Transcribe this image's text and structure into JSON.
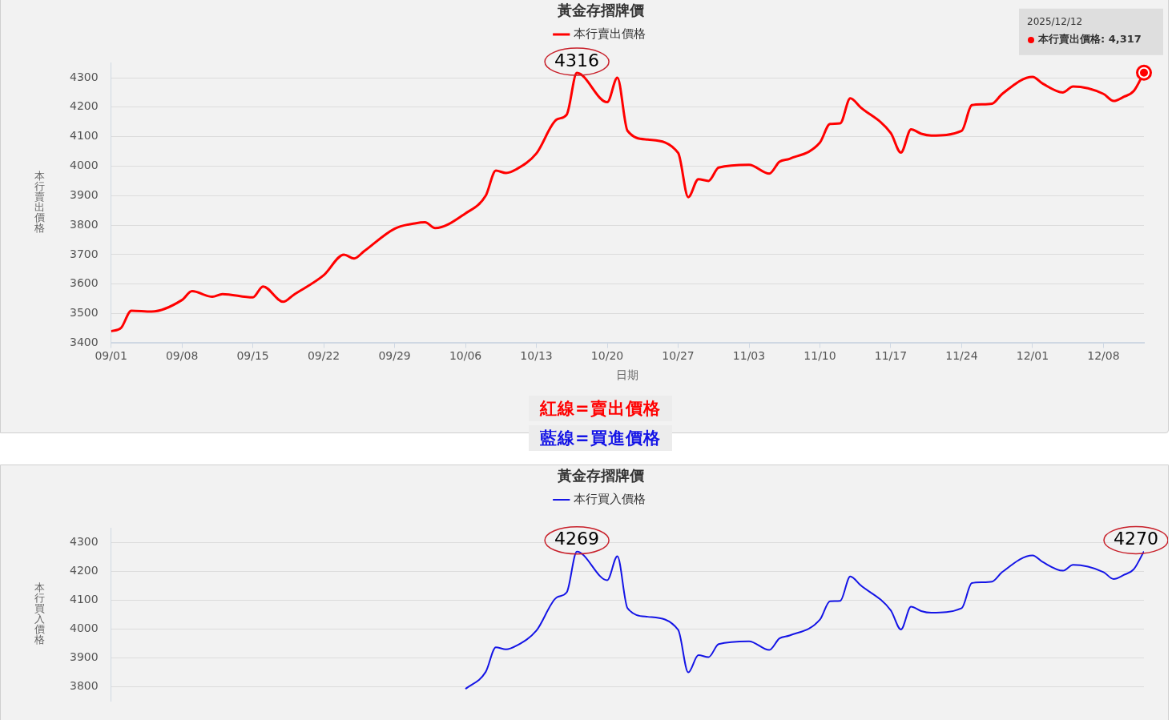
{
  "chart_data": [
    {
      "type": "line",
      "title": "黃金存摺牌價",
      "legend": "top",
      "xlabel": "日期",
      "ylabel": "本行賣出價格",
      "grid": "y",
      "marker": "none",
      "x": [
        "--09-01",
        "--09-02",
        "--09-03",
        "--09-05",
        "--09-08",
        "--09-09",
        "--09-11",
        "--09-12",
        "--09-15",
        "--09-16",
        "--09-18",
        "--09-19",
        "--09-22",
        "--09-24",
        "--09-25",
        "--09-26",
        "--09-29",
        "--10-01",
        "--10-02",
        "--10-03",
        "--10-06",
        "--10-08",
        "--10-09",
        "--10-10",
        "--10-11",
        "--10-13",
        "--10-15",
        "--10-16",
        "--10-17",
        "--10-20",
        "--10-21",
        "--10-22",
        "--10-24",
        "--10-27",
        "--10-28",
        "--10-29",
        "--10-30",
        "--10-31",
        "--11-03",
        "--11-05",
        "--11-06",
        "--11-07",
        "--11-10",
        "--11-11",
        "--11-12",
        "--11-13",
        "--11-14",
        "--11-17",
        "--11-18",
        "--11-19",
        "--11-20",
        "--11-21",
        "--11-24",
        "--11-25",
        "--11-26",
        "--11-27",
        "--11-28",
        "--12-01",
        "--12-02",
        "--12-04",
        "--12-05",
        "--12-08",
        "--12-09",
        "--12-10",
        "--12-11",
        "--12-12"
      ],
      "series": [
        {
          "name": "本行賣出價格",
          "color": "#ff0000",
          "values": [
            3440,
            3452,
            3510,
            3507,
            3546,
            3576,
            3557,
            3566,
            3555,
            3592,
            3540,
            3563,
            3630,
            3700,
            3687,
            3712,
            3788,
            3806,
            3810,
            3790,
            3840,
            3900,
            3985,
            3977,
            3989,
            4043,
            4158,
            4175,
            4316,
            4217,
            4300,
            4120,
            4090,
            4045,
            3895,
            3956,
            3950,
            3995,
            4005,
            3975,
            4015,
            4025,
            4080,
            4143,
            4145,
            4230,
            4200,
            4112,
            4046,
            4125,
            4110,
            4104,
            4120,
            4207,
            4210,
            4212,
            4245,
            4303,
            4280,
            4250,
            4270,
            4245,
            4221,
            4235,
            4255,
            4317
          ]
        }
      ],
      "xlim": [
        "--09-01",
        "--12-12"
      ],
      "xticks": [
        {
          "value": "--09-01",
          "label": "09/01"
        },
        {
          "value": "--09-08",
          "label": "09/08"
        },
        {
          "value": "--09-15",
          "label": "09/15"
        },
        {
          "value": "--09-22",
          "label": "09/22"
        },
        {
          "value": "--09-29",
          "label": "09/29"
        },
        {
          "value": "--10-06",
          "label": "10/06"
        },
        {
          "value": "--10-13",
          "label": "10/13"
        },
        {
          "value": "--10-20",
          "label": "10/20"
        },
        {
          "value": "--10-27",
          "label": "10/27"
        },
        {
          "value": "--11-03",
          "label": "11/03"
        },
        {
          "value": "--11-10",
          "label": "11/10"
        },
        {
          "value": "--11-17",
          "label": "11/17"
        },
        {
          "value": "--11-24",
          "label": "11/24"
        },
        {
          "value": "--12-01",
          "label": "12/01"
        },
        {
          "value": "--12-08",
          "label": "12/08"
        }
      ],
      "ylim": [
        3400,
        4350
      ],
      "yticks": [
        3400,
        3500,
        3600,
        3700,
        3800,
        3900,
        4000,
        4100,
        4200,
        4300
      ],
      "annotations": [
        {
          "text": "4316",
          "x": "--10-17",
          "y": 4316
        },
        {
          "text": "2025/12/12\n本行賣出價格: 4,317",
          "x": "--12-12",
          "y": 4317
        },
        "紅線=賣出價格"
      ]
    },
    {
      "type": "line",
      "title": "黃金存摺牌價",
      "legend": "top",
      "ylabel": "本行買入價格",
      "grid": "y",
      "marker": "none",
      "tick_labels": "y",
      "x": [
        "--10-06",
        "--10-08",
        "--10-09",
        "--10-10",
        "--10-11",
        "--10-13",
        "--10-15",
        "--10-16",
        "--10-17",
        "--10-20",
        "--10-21",
        "--10-22",
        "--10-24",
        "--10-27",
        "--10-28",
        "--10-29",
        "--10-30",
        "--10-31",
        "--11-03",
        "--11-05",
        "--11-06",
        "--11-07",
        "--11-10",
        "--11-11",
        "--11-12",
        "--11-13",
        "--11-14",
        "--11-17",
        "--11-18",
        "--11-19",
        "--11-20",
        "--11-21",
        "--11-24",
        "--11-25",
        "--11-26",
        "--11-27",
        "--11-28",
        "--12-01",
        "--12-02",
        "--12-04",
        "--12-05",
        "--12-08",
        "--12-09",
        "--12-10",
        "--12-11",
        "--12-12"
      ],
      "series": [
        {
          "name": "本行買入價格",
          "color": "#1414e6",
          "values": [
            3793,
            3852,
            3937,
            3930,
            3942,
            3995,
            4110,
            4128,
            4269,
            4170,
            4253,
            4073,
            4043,
            3998,
            3850,
            3910,
            3903,
            3948,
            3958,
            3928,
            3968,
            3978,
            4033,
            4097,
            4098,
            4183,
            4153,
            4065,
            3999,
            4078,
            4063,
            4057,
            4073,
            4160,
            4163,
            4165,
            4198,
            4256,
            4233,
            4203,
            4223,
            4198,
            4174,
            4188,
            4208,
            4270
          ]
        }
      ],
      "xlim": [
        "--09-01",
        "--12-12"
      ],
      "ylim": [
        3750,
        4350
      ],
      "yticks": [
        3800,
        3900,
        4000,
        4100,
        4200,
        4300
      ],
      "annotations": [
        {
          "text": "4269",
          "x": "--10-17",
          "y": 4269
        },
        {
          "text": "4270",
          "x": "--12-12",
          "y": 4270
        },
        "藍線=買進價格"
      ]
    }
  ]
}
